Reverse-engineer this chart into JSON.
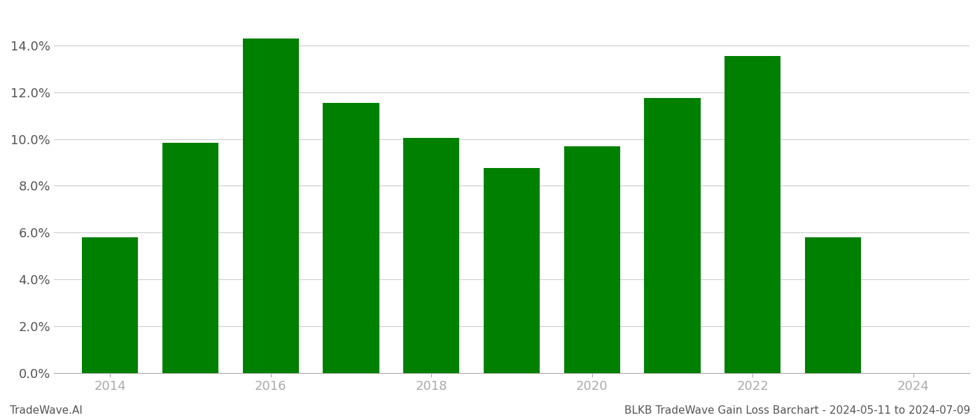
{
  "years": [
    2014,
    2015,
    2016,
    2017,
    2018,
    2019,
    2020,
    2021,
    2022,
    2023
  ],
  "values": [
    0.058,
    0.0985,
    0.143,
    0.1155,
    0.1005,
    0.0875,
    0.097,
    0.1175,
    0.1355,
    0.058
  ],
  "bar_color": "#008000",
  "background_color": "#ffffff",
  "ylim": [
    0,
    0.155
  ],
  "yticks": [
    0.0,
    0.02,
    0.04,
    0.06,
    0.08,
    0.1,
    0.12,
    0.14
  ],
  "xlim": [
    2013.3,
    2024.7
  ],
  "xticks": [
    2014,
    2016,
    2018,
    2020,
    2022,
    2024
  ],
  "grid_color": "#cccccc",
  "footer_left": "TradeWave.AI",
  "footer_right": "BLKB TradeWave Gain Loss Barchart - 2024-05-11 to 2024-07-09",
  "footer_fontsize": 11,
  "tick_fontsize": 13,
  "bar_width": 0.7
}
